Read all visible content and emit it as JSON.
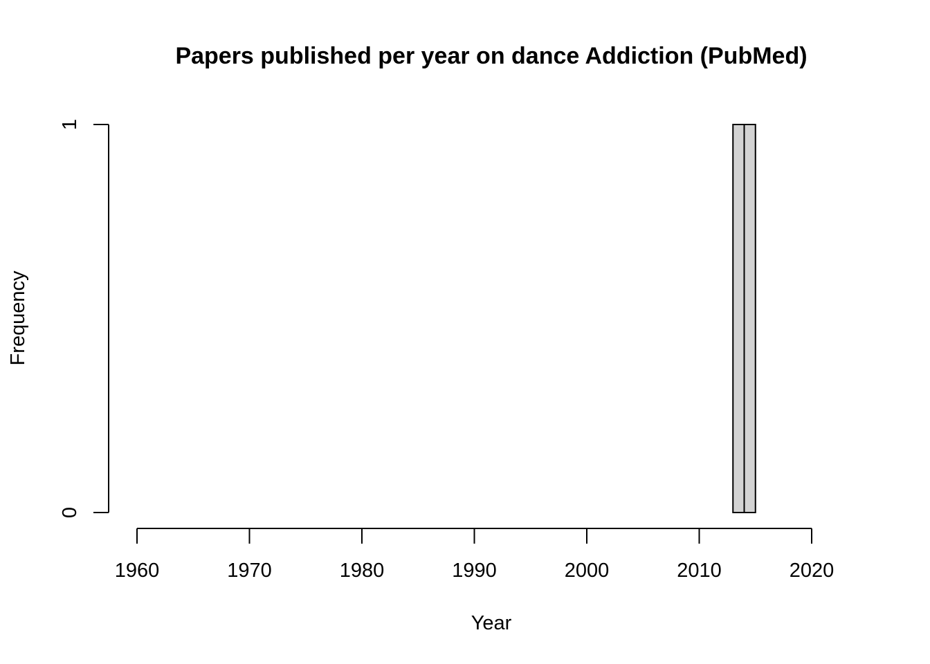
{
  "chart_data": {
    "type": "bar",
    "title": "Papers published per year on dance Addiction (PubMed)",
    "xlabel": "Year",
    "ylabel": "Frequency",
    "xlim": [
      1960,
      2020
    ],
    "ylim": [
      0,
      1
    ],
    "x_ticks": [
      "1960",
      "1970",
      "1980",
      "1990",
      "2000",
      "2010",
      "2020"
    ],
    "y_ticks": [
      "0",
      "1"
    ],
    "bins": [
      {
        "start": 2013,
        "end": 2014,
        "value": 1
      },
      {
        "start": 2014,
        "end": 2015,
        "value": 1
      }
    ],
    "bar_color": "#d3d3d3",
    "grid": false
  }
}
